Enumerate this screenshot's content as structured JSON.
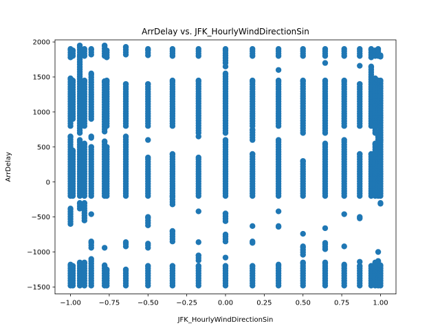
{
  "chart_data": {
    "type": "scatter",
    "title": "ArrDelay vs. JFK_HourlyWindDirectionSin",
    "xlabel": "JFK_HourlyWindDirectionSin",
    "ylabel": "ArrDelay",
    "xlim": [
      -1.1,
      1.1
    ],
    "ylim": [
      -1600,
      2030
    ],
    "xticks": [
      -1.0,
      -0.75,
      -0.5,
      -0.25,
      0.0,
      0.25,
      0.5,
      0.75,
      1.0
    ],
    "xtick_labels": [
      "−1.00",
      "−0.75",
      "−0.50",
      "−0.25",
      "0.00",
      "0.25",
      "0.50",
      "0.75",
      "1.00"
    ],
    "yticks": [
      -1500,
      -1000,
      -500,
      0,
      500,
      1000,
      1500,
      2000
    ],
    "ytick_labels": [
      "−1500",
      "−1000",
      "−500",
      "0",
      "500",
      "1000",
      "1500",
      "2000"
    ],
    "grid": false,
    "marker_color": "#1f77b4",
    "columns": [
      {
        "x": -1.0,
        "segments": [
          [
            -1480,
            -1180
          ],
          [
            -600,
            -380
          ],
          [
            -200,
            650
          ],
          [
            800,
            1480
          ],
          [
            1780,
            1900
          ]
        ]
      },
      {
        "x": -0.985,
        "segments": [
          [
            -1480,
            -1200
          ],
          [
            -200,
            450
          ],
          [
            900,
            1450
          ],
          [
            1800,
            1880
          ]
        ]
      },
      {
        "x": -0.94,
        "segments": [
          [
            -1480,
            -1150
          ],
          [
            -380,
            -300
          ],
          [
            -200,
            600
          ],
          [
            700,
            1800
          ],
          [
            1820,
            1950
          ]
        ]
      },
      {
        "x": -0.91,
        "segments": [
          [
            -1480,
            -1150
          ],
          [
            -550,
            -300
          ],
          [
            -200,
            550
          ],
          [
            800,
            1450
          ],
          [
            1800,
            1900
          ]
        ]
      },
      {
        "x": -0.866,
        "segments": [
          [
            -1480,
            -1100
          ],
          [
            -940,
            -850
          ],
          [
            -460,
            -460
          ],
          [
            -200,
            500
          ],
          [
            630,
            650
          ],
          [
            900,
            1550
          ],
          [
            1820,
            1900
          ]
        ]
      },
      {
        "x": -0.78,
        "segments": [
          [
            -1480,
            -1190
          ],
          [
            -940,
            -940
          ],
          [
            -200,
            580
          ],
          [
            720,
            1440
          ],
          [
            1800,
            1950
          ]
        ]
      },
      {
        "x": -0.766,
        "segments": [
          [
            -1480,
            -1250
          ],
          [
            -200,
            500
          ],
          [
            800,
            1450
          ],
          [
            1780,
            1880
          ]
        ]
      },
      {
        "x": -0.643,
        "segments": [
          [
            -1480,
            -1250
          ],
          [
            -920,
            -860
          ],
          [
            -200,
            650
          ],
          [
            800,
            1400
          ],
          [
            1820,
            1930
          ]
        ]
      },
      {
        "x": -0.5,
        "segments": [
          [
            -1480,
            -1200
          ],
          [
            -940,
            -880
          ],
          [
            -620,
            -500
          ],
          [
            -200,
            350
          ],
          [
            600,
            600
          ],
          [
            800,
            1400
          ],
          [
            1810,
            1900
          ]
        ]
      },
      {
        "x": -0.342,
        "segments": [
          [
            -1480,
            -1200
          ],
          [
            -850,
            -700
          ],
          [
            -320,
            -200
          ],
          [
            -200,
            400
          ],
          [
            800,
            1450
          ],
          [
            1800,
            1900
          ]
        ]
      },
      {
        "x": -0.174,
        "segments": [
          [
            -1480,
            -1200
          ],
          [
            -1120,
            -1050
          ],
          [
            -860,
            -860
          ],
          [
            -420,
            -420
          ],
          [
            -200,
            350
          ],
          [
            650,
            650
          ],
          [
            700,
            1450
          ],
          [
            1800,
            1900
          ]
        ]
      },
      {
        "x": 0.0,
        "segments": [
          [
            -1480,
            -1200
          ],
          [
            -1080,
            -1080
          ],
          [
            -850,
            -750
          ],
          [
            -560,
            -450
          ],
          [
            -200,
            600
          ],
          [
            700,
            1550
          ],
          [
            1650,
            1650
          ],
          [
            1700,
            1900
          ]
        ]
      },
      {
        "x": 0.174,
        "segments": [
          [
            -1480,
            -1200
          ],
          [
            -870,
            -850
          ],
          [
            -630,
            -630
          ],
          [
            -200,
            400
          ],
          [
            600,
            750
          ],
          [
            800,
            1450
          ],
          [
            1800,
            1900
          ]
        ]
      },
      {
        "x": 0.342,
        "segments": [
          [
            -1480,
            -1180
          ],
          [
            -640,
            -630
          ],
          [
            -420,
            -420
          ],
          [
            -200,
            600
          ],
          [
            800,
            1450
          ],
          [
            1600,
            1600
          ],
          [
            1800,
            1900
          ]
        ]
      },
      {
        "x": 0.5,
        "segments": [
          [
            -1480,
            -1150
          ],
          [
            -1040,
            -920
          ],
          [
            -740,
            -740
          ],
          [
            -200,
            300
          ],
          [
            700,
            1450
          ],
          [
            1800,
            1900
          ]
        ]
      },
      {
        "x": 0.643,
        "segments": [
          [
            -1480,
            -1150
          ],
          [
            -960,
            -870
          ],
          [
            -660,
            -660
          ],
          [
            -200,
            550
          ],
          [
            700,
            1450
          ],
          [
            1700,
            1700
          ],
          [
            1800,
            1900
          ]
        ]
      },
      {
        "x": 0.766,
        "segments": [
          [
            -1480,
            -1180
          ],
          [
            -920,
            -920
          ],
          [
            -460,
            -460
          ],
          [
            -200,
            600
          ],
          [
            800,
            1450
          ],
          [
            1800,
            1900
          ]
        ]
      },
      {
        "x": 0.866,
        "segments": [
          [
            -1480,
            -1200
          ],
          [
            -1140,
            -1140
          ],
          [
            -520,
            -500
          ],
          [
            -200,
            400
          ],
          [
            800,
            1400
          ],
          [
            1660,
            1660
          ],
          [
            1800,
            1900
          ]
        ]
      },
      {
        "x": 0.94,
        "segments": [
          [
            -1480,
            -1200
          ],
          [
            -200,
            400
          ],
          [
            800,
            1650
          ],
          [
            1780,
            1900
          ]
        ]
      },
      {
        "x": 0.966,
        "segments": [
          [
            -1480,
            -1150
          ],
          [
            -200,
            550
          ],
          [
            700,
            1480
          ],
          [
            1800,
            1880
          ]
        ]
      },
      {
        "x": 0.985,
        "segments": [
          [
            -1480,
            -1130
          ],
          [
            -1000,
            -1000
          ],
          [
            -200,
            650
          ],
          [
            800,
            1450
          ],
          [
            1800,
            1900
          ]
        ]
      },
      {
        "x": 1.0,
        "segments": [
          [
            -1480,
            -1190
          ],
          [
            -310,
            -300
          ],
          [
            -200,
            600
          ],
          [
            600,
            1450
          ],
          [
            1790,
            1810
          ]
        ]
      }
    ]
  }
}
